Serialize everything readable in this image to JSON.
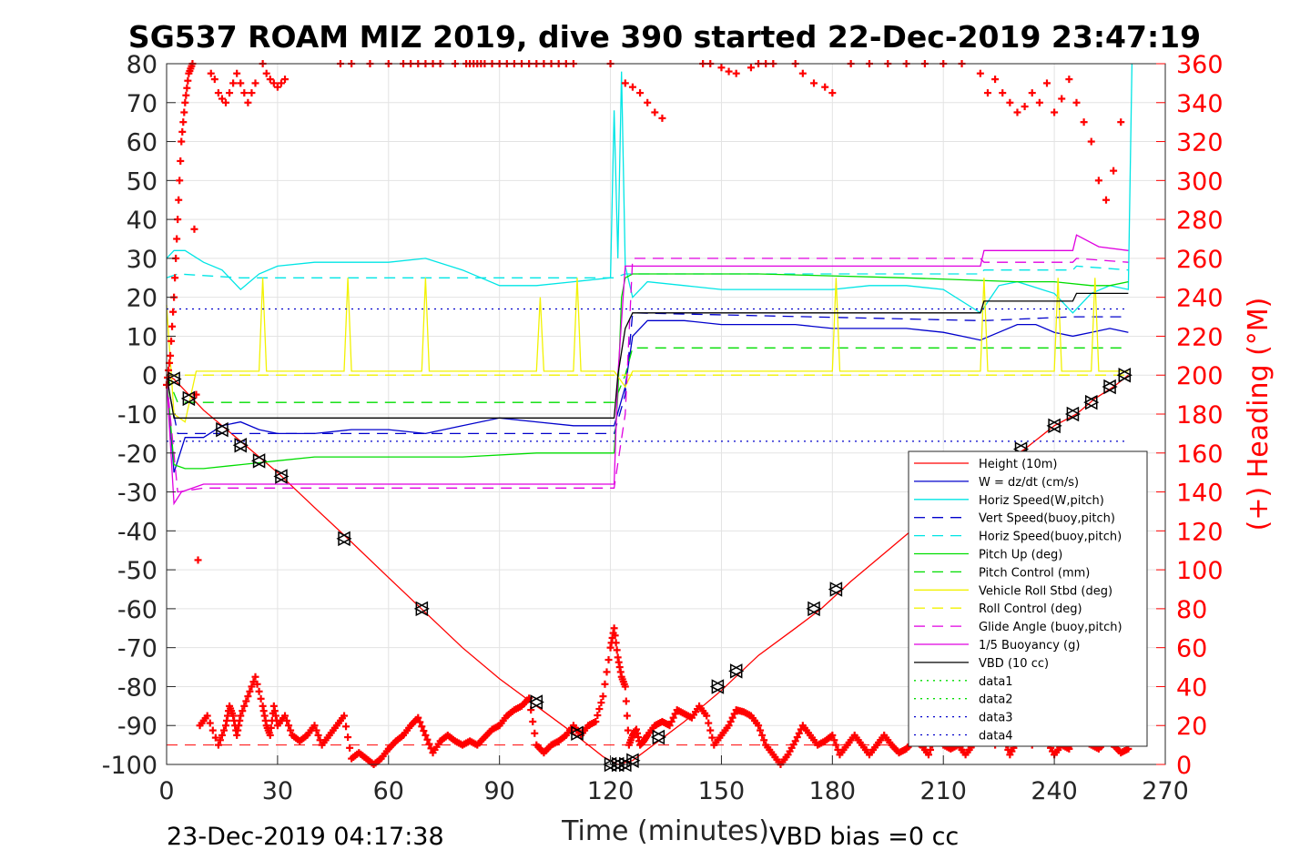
{
  "chart_data": {
    "type": "line",
    "title": "SG537 ROAM MIZ 2019, dive 390 started 22-Dec-2019 23:47:19",
    "xlabel": "Time (minutes)",
    "ylabel_right": "(+) Heading (°M)",
    "xlim": [
      0,
      270
    ],
    "ylim": [
      -100,
      80
    ],
    "ylim_right": [
      0,
      360
    ],
    "x_ticks": [
      "0",
      "30",
      "60",
      "90",
      "120",
      "150",
      "180",
      "210",
      "240",
      "270"
    ],
    "y_ticks": [
      "80",
      "70",
      "60",
      "50",
      "40",
      "30",
      "20",
      "10",
      "0",
      "-10",
      "-20",
      "-30",
      "-40",
      "-50",
      "-60",
      "-70",
      "-80",
      "-90",
      "-100"
    ],
    "y_ticks_right": [
      "360",
      "340",
      "320",
      "300",
      "280",
      "260",
      "240",
      "220",
      "200",
      "180",
      "160",
      "140",
      "120",
      "100",
      "80",
      "60",
      "40",
      "20",
      "0"
    ],
    "grid": true,
    "legend_position": "lower-right",
    "footer_left": "23-Dec-2019 04:17:38",
    "footer_right": "VBD bias =0 cc",
    "colors": {
      "red": "#ff0000",
      "blue": "#0000cc",
      "cyan": "#00e5e5",
      "green": "#00dd00",
      "yellow": "#f2f200",
      "magenta": "#e000e0",
      "black": "#000000"
    },
    "series": [
      {
        "name": "Height (10m)",
        "color": "#ff0000",
        "style": "solid",
        "x": [
          0,
          2,
          10,
          20,
          30,
          40,
          49,
          60,
          70,
          80,
          90,
          100,
          110,
          118,
          122,
          126,
          133,
          140,
          150,
          160,
          170,
          177,
          185,
          195,
          205,
          215,
          225,
          232,
          240,
          246,
          251,
          256,
          260
        ],
        "y": [
          0,
          -1,
          -9,
          -17,
          -25,
          -34,
          -42,
          -52,
          -61,
          -70,
          -78,
          -85,
          -92,
          -98,
          -100,
          -99,
          -94,
          -89,
          -81,
          -72,
          -65,
          -60,
          -53,
          -45,
          -37,
          -30,
          -23,
          -19,
          -13,
          -10,
          -6,
          -3,
          0
        ]
      },
      {
        "name": "W = dz/dt (cm/s)",
        "color": "#0000cc",
        "style": "solid",
        "x": [
          0,
          2,
          5,
          10,
          15,
          20,
          25,
          30,
          40,
          50,
          60,
          70,
          80,
          90,
          100,
          110,
          121,
          124,
          126,
          130,
          140,
          150,
          160,
          170,
          180,
          190,
          200,
          210,
          215,
          220,
          225,
          230,
          235,
          240,
          245,
          250,
          255,
          260
        ],
        "y": [
          -1,
          -25,
          -16,
          -16,
          -13,
          -12,
          -14,
          -15,
          -15,
          -14,
          -14,
          -15,
          -13,
          -11,
          -12,
          -13,
          -13,
          -3,
          10,
          14,
          14,
          13,
          13,
          13,
          12,
          12,
          12,
          11,
          10,
          9,
          11,
          13,
          13,
          11,
          10,
          11,
          12,
          11
        ]
      },
      {
        "name": "Horiz Speed(W,pitch)",
        "color": "#00e5e5",
        "style": "solid",
        "x": [
          0,
          2,
          5,
          10,
          15,
          20,
          25,
          30,
          40,
          50,
          60,
          70,
          80,
          90,
          100,
          110,
          120,
          121,
          122,
          123,
          124,
          126,
          130,
          140,
          150,
          160,
          170,
          180,
          190,
          200,
          210,
          220,
          225,
          230,
          240,
          245,
          250,
          255,
          260,
          261
        ],
        "y": [
          30,
          32,
          32,
          29,
          27,
          22,
          26,
          28,
          29,
          29,
          29,
          30,
          27,
          23,
          23,
          24,
          25,
          68,
          30,
          78,
          28,
          20,
          24,
          23,
          22,
          22,
          22,
          22,
          23,
          23,
          22,
          16,
          23,
          24,
          21,
          16,
          21,
          23,
          22,
          80
        ]
      },
      {
        "name": "Vert Speed(buoy,pitch)",
        "color": "#0000cc",
        "style": "dashed",
        "x": [
          0,
          3,
          121,
          124,
          126,
          220,
          221,
          245,
          246,
          260
        ],
        "y": [
          -1,
          -15,
          -15,
          -5,
          16,
          14,
          14,
          15,
          15,
          15
        ]
      },
      {
        "name": "Horiz Speed(buoy,pitch)",
        "color": "#00e5e5",
        "style": "dashed",
        "x": [
          0,
          3,
          20,
          121,
          124,
          126,
          220,
          221,
          245,
          246,
          260
        ],
        "y": [
          25,
          26,
          25,
          25,
          26,
          26,
          26,
          27,
          27,
          28,
          27
        ]
      },
      {
        "name": "Pitch Up (deg)",
        "color": "#00dd00",
        "style": "solid",
        "x": [
          0,
          2,
          5,
          10,
          20,
          30,
          40,
          60,
          80,
          100,
          121,
          122,
          123,
          124,
          126,
          130,
          160,
          200,
          230,
          240,
          250,
          255,
          260
        ],
        "y": [
          0,
          -23,
          -24,
          -24,
          -23,
          -22,
          -21,
          -21,
          -21,
          -20,
          -20,
          -5,
          20,
          25,
          26,
          26,
          26,
          25,
          24,
          24,
          23,
          23,
          24
        ]
      },
      {
        "name": "Pitch Control (mm)",
        "color": "#00dd00",
        "style": "dashed",
        "x": [
          0,
          3,
          121,
          124,
          126,
          260
        ],
        "y": [
          0,
          -7,
          -7,
          0,
          7,
          7
        ]
      },
      {
        "name": "Vehicle Roll Stbd (deg)",
        "color": "#f2f200",
        "style": "solid",
        "x": [
          0,
          2,
          5,
          8,
          25,
          26,
          27,
          48,
          49,
          50,
          69,
          70,
          71,
          100,
          101,
          102,
          110,
          111,
          112,
          121,
          124,
          126,
          130,
          160,
          180,
          181,
          182,
          200,
          220,
          221,
          222,
          240,
          241,
          242,
          250,
          251,
          252,
          260
        ],
        "y": [
          18,
          -10,
          -12,
          1,
          1,
          25,
          1,
          1,
          25,
          1,
          1,
          25,
          1,
          1,
          20,
          1,
          1,
          25,
          1,
          1,
          -3,
          1,
          1,
          1,
          1,
          25,
          1,
          1,
          1,
          25,
          1,
          1,
          25,
          1,
          1,
          25,
          1,
          1
        ]
      },
      {
        "name": "Roll Control (deg)",
        "color": "#f2f200",
        "style": "dashed",
        "x": [
          0,
          3,
          260
        ],
        "y": [
          0,
          0,
          0
        ]
      },
      {
        "name": "Glide Angle (buoy,pitch)",
        "color": "#e000e0",
        "style": "dashed",
        "x": [
          0,
          3,
          10,
          121,
          124,
          126,
          200,
          220,
          221,
          245,
          246,
          260
        ],
        "y": [
          -1,
          -30,
          -29,
          -29,
          -10,
          30,
          30,
          30,
          29,
          29,
          30,
          29
        ]
      },
      {
        "name": "1/5 Buoyancy (g)",
        "color": "#e000e0",
        "style": "solid",
        "x": [
          0,
          2,
          4,
          10,
          30,
          121,
          122,
          124,
          126,
          220,
          221,
          245,
          246,
          252,
          260
        ],
        "y": [
          -1,
          -33,
          -30,
          -28,
          -28,
          -28,
          0,
          28,
          28,
          28,
          32,
          32,
          36,
          33,
          32
        ]
      },
      {
        "name": "VBD (10 cc)",
        "color": "#000000",
        "style": "solid",
        "x": [
          0,
          2,
          5,
          121,
          122,
          124,
          126,
          220,
          221,
          245,
          246,
          260
        ],
        "y": [
          0,
          -11,
          -11,
          -11,
          0,
          12,
          16,
          16,
          19,
          19,
          21,
          21
        ]
      },
      {
        "name": "data1",
        "color": "#00dd00",
        "style": "dotted",
        "x": [],
        "y": []
      },
      {
        "name": "data2",
        "color": "#00dd00",
        "style": "dotted",
        "x": [],
        "y": []
      },
      {
        "name": "data3",
        "color": "#0000cc",
        "style": "dotted",
        "x": [
          0,
          260
        ],
        "y": [
          17,
          17
        ]
      },
      {
        "name": "data4",
        "color": "#0000cc",
        "style": "dotted",
        "x": [
          0,
          260
        ],
        "y": [
          -17,
          -17
        ]
      }
    ],
    "heading": {
      "axis": "right",
      "color": "#ff0000",
      "marker": "+",
      "x": [
        0,
        1,
        2,
        3,
        4,
        5,
        6,
        7,
        9,
        11,
        14,
        16,
        17,
        18,
        19,
        20,
        22,
        24,
        26,
        27,
        28,
        29,
        30,
        32,
        34,
        36,
        38,
        40,
        42,
        44,
        46,
        48,
        50,
        52,
        54,
        56,
        58,
        60,
        62,
        64,
        66,
        68,
        70,
        72,
        74,
        76,
        78,
        80,
        82,
        84,
        86,
        88,
        90,
        92,
        94,
        96,
        98,
        100,
        102,
        104,
        106,
        108,
        110,
        112,
        114,
        116,
        118,
        120,
        121,
        122,
        123,
        124,
        125,
        126,
        127,
        128,
        129,
        130,
        132,
        134,
        136,
        138,
        140,
        142,
        144,
        146,
        148,
        150,
        152,
        154,
        156,
        158,
        160,
        162,
        164,
        166,
        168,
        170,
        172,
        174,
        176,
        178,
        180,
        182,
        184,
        186,
        188,
        190,
        192,
        194,
        196,
        198,
        200,
        202,
        204,
        206,
        208,
        210,
        212,
        214,
        216,
        218,
        220,
        222,
        224,
        226,
        228,
        230,
        232,
        234,
        236,
        238,
        240,
        242,
        244,
        246,
        248,
        250,
        252,
        254,
        256,
        258,
        260
      ],
      "y": [
        195,
        210,
        240,
        280,
        320,
        340,
        355,
        360,
        20,
        25,
        10,
        20,
        30,
        25,
        15,
        25,
        35,
        45,
        30,
        20,
        15,
        30,
        20,
        25,
        15,
        12,
        15,
        20,
        10,
        15,
        20,
        25,
        3,
        6,
        3,
        0,
        3,
        8,
        12,
        15,
        20,
        24,
        15,
        6,
        12,
        15,
        12,
        10,
        12,
        10,
        14,
        18,
        20,
        25,
        28,
        30,
        34,
        10,
        6,
        10,
        12,
        15,
        20,
        15,
        20,
        22,
        35,
        60,
        70,
        55,
        45,
        40,
        10,
        15,
        18,
        10,
        12,
        15,
        20,
        22,
        20,
        28,
        26,
        24,
        30,
        25,
        10,
        15,
        20,
        28,
        27,
        25,
        20,
        10,
        5,
        0,
        5,
        12,
        20,
        15,
        10,
        12,
        15,
        5,
        10,
        15,
        10,
        5,
        10,
        15,
        10,
        6,
        8,
        12,
        10,
        5,
        15,
        10,
        8,
        10,
        5,
        10,
        15,
        20,
        10,
        15,
        5,
        12,
        20,
        10,
        15,
        12,
        5,
        10,
        8,
        15,
        12,
        10,
        8,
        12,
        10,
        6,
        8
      ]
    },
    "heading_north_band": {
      "x": [
        12,
        13,
        14,
        15,
        16,
        17,
        18,
        19,
        20,
        21,
        22,
        23,
        24,
        26,
        27,
        28,
        29,
        30,
        31,
        32,
        47,
        50,
        55,
        60,
        64,
        66,
        68,
        70,
        72,
        74,
        78,
        81,
        82,
        83,
        84,
        85,
        86,
        88,
        90,
        92,
        94,
        96,
        98,
        100,
        102,
        104,
        106,
        108,
        110,
        120,
        124,
        126,
        128,
        130,
        132,
        134,
        145,
        147,
        150,
        152,
        154,
        158,
        160,
        162,
        164,
        170,
        172,
        175,
        178,
        180,
        185,
        190,
        195,
        200,
        205,
        210,
        215,
        220,
        222,
        224,
        226,
        228,
        230,
        232,
        234,
        236,
        238,
        240,
        242,
        244,
        246,
        248,
        250,
        252,
        254,
        256,
        258
      ],
      "y": [
        355,
        352,
        345,
        342,
        340,
        345,
        350,
        355,
        350,
        345,
        340,
        345,
        350,
        360,
        355,
        352,
        350,
        348,
        350,
        352,
        360,
        360,
        360,
        360,
        360,
        360,
        360,
        360,
        360,
        360,
        360,
        360,
        360,
        360,
        360,
        360,
        360,
        360,
        360,
        360,
        360,
        360,
        360,
        360,
        360,
        360,
        360,
        360,
        360,
        360,
        350,
        348,
        345,
        340,
        335,
        332,
        360,
        360,
        358,
        356,
        355,
        358,
        360,
        360,
        360,
        360,
        355,
        350,
        348,
        345,
        360,
        360,
        360,
        360,
        360,
        360,
        360,
        355,
        345,
        352,
        345,
        340,
        335,
        338,
        345,
        340,
        350,
        335,
        342,
        352,
        340,
        330,
        320,
        300,
        290,
        305,
        330
      ]
    },
    "heading_dashed_y": 10,
    "pitch_markers": {
      "marker": "triangle",
      "x": [
        2,
        6,
        15,
        20,
        25,
        31,
        48,
        69,
        100,
        111,
        120,
        122,
        124,
        126,
        133,
        149,
        154,
        175,
        181,
        231,
        240,
        245,
        250,
        255,
        259
      ],
      "y": [
        -1,
        -6,
        -14,
        -18,
        -22,
        -26,
        -42,
        -60,
        -84,
        -92,
        -100,
        -100,
        -100,
        -99,
        -93,
        -80,
        -76,
        -60,
        -55,
        -19,
        -13,
        -10,
        -7,
        -3,
        0
      ]
    }
  }
}
